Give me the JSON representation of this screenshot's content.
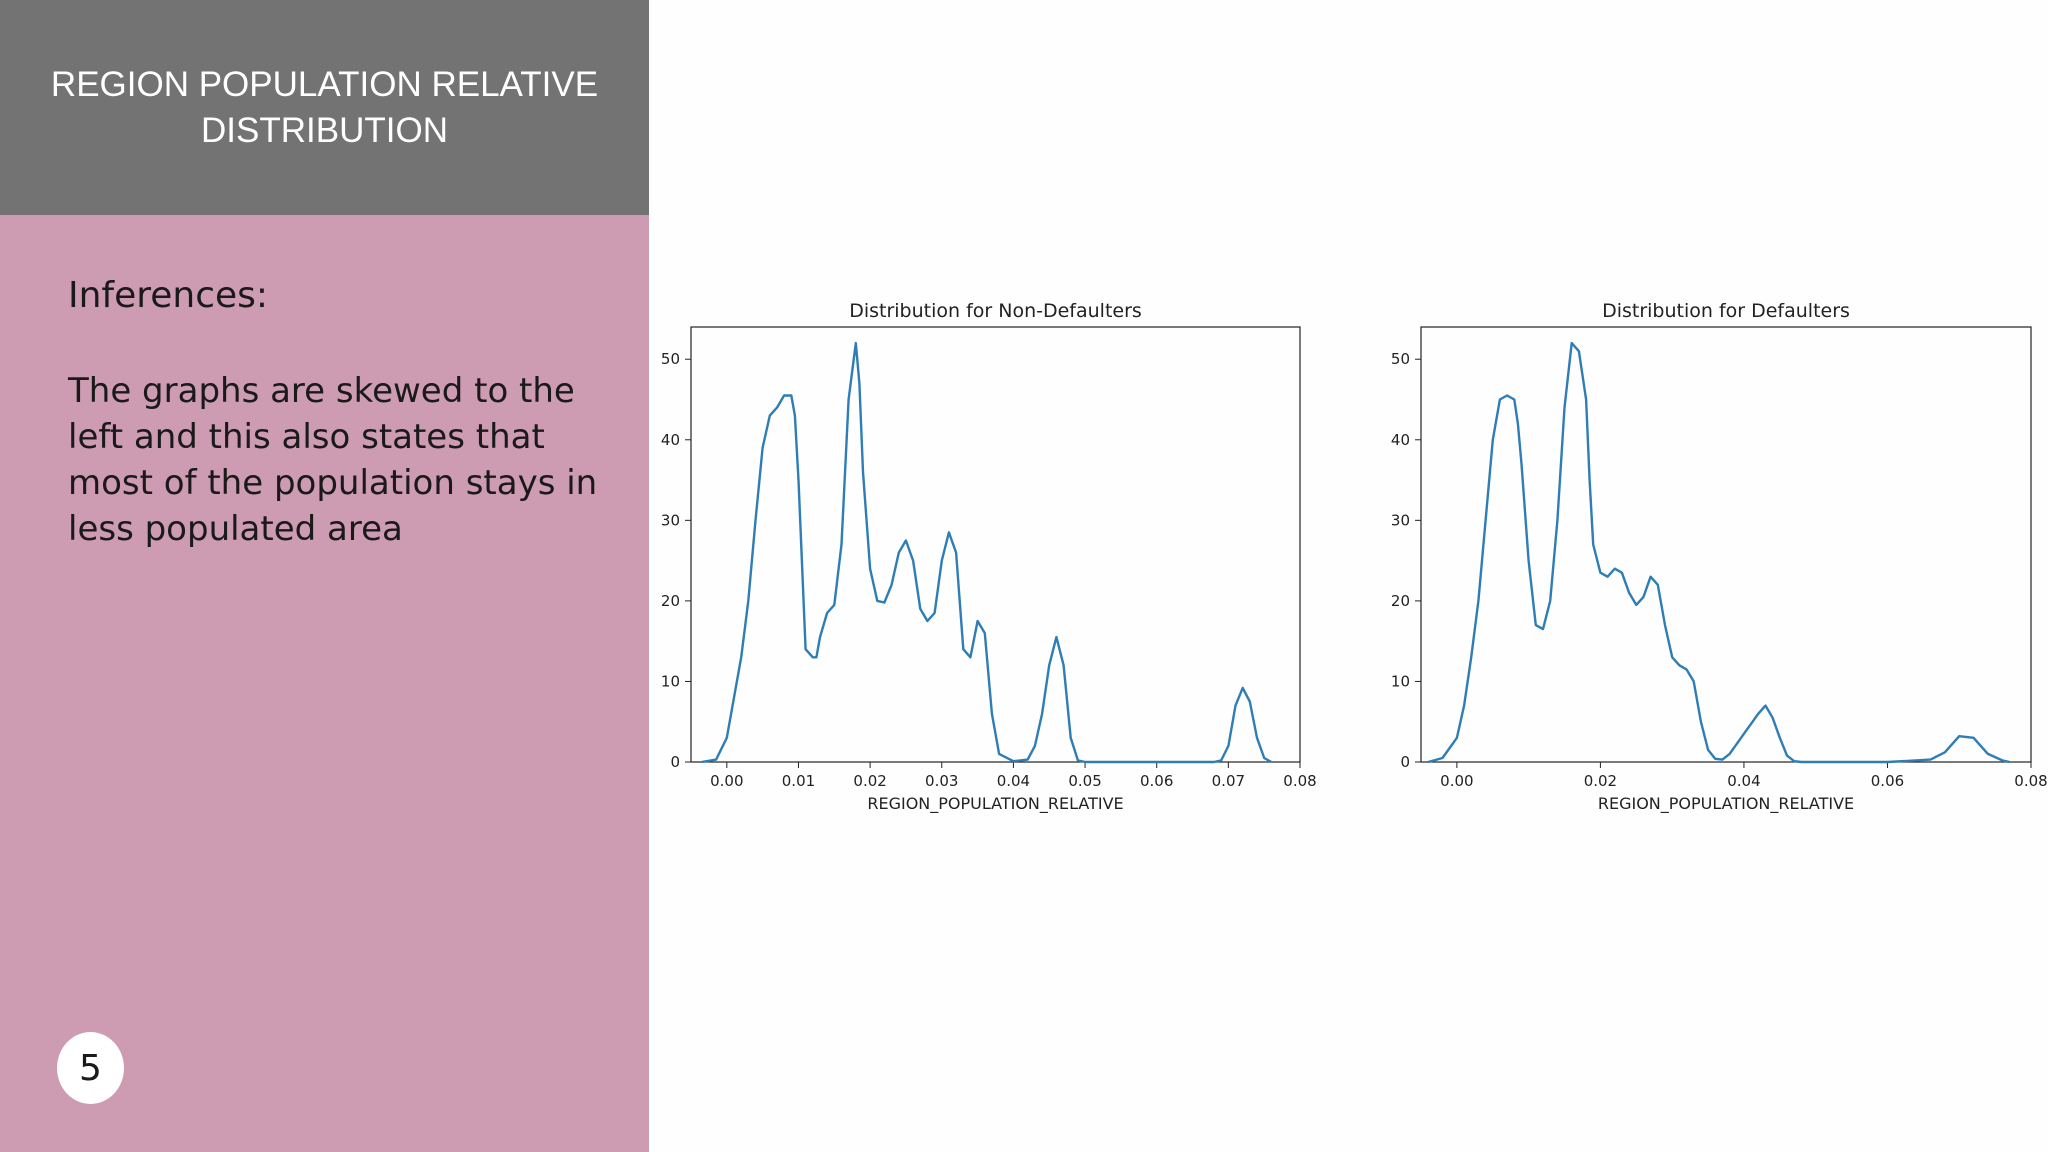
{
  "slide": {
    "title": "REGION POPULATION RELATIVE DISTRIBUTION",
    "inferences_heading": "Inferences:",
    "inferences_text": "The graphs are skewed to the left and this also states that most of the population stays in less populated area",
    "page_number": "5"
  },
  "colors": {
    "header_bg": "#737373",
    "panel_bg": "#cd9bb2",
    "line": "#2e7db5"
  },
  "chart_data": [
    {
      "type": "line",
      "title": "Distribution for Non-Defaulters",
      "xlabel": "REGION_POPULATION_RELATIVE",
      "ylabel": "",
      "xlim": [
        -0.005,
        0.08
      ],
      "ylim": [
        0,
        54
      ],
      "xticks": [
        0.0,
        0.01,
        0.02,
        0.03,
        0.04,
        0.05,
        0.06,
        0.07,
        0.08
      ],
      "xtick_labels": [
        "0.00",
        "0.01",
        "0.02",
        "0.03",
        "0.04",
        "0.05",
        "0.06",
        "0.07",
        "0.08"
      ],
      "yticks": [
        0,
        10,
        20,
        30,
        40,
        50
      ],
      "grid": false,
      "series": [
        {
          "x": [
            -0.0035,
            -0.0015,
            0.0,
            0.001,
            0.002,
            0.003,
            0.004,
            0.005,
            0.006,
            0.0065,
            0.007,
            0.008,
            0.009,
            0.0095,
            0.01,
            0.011,
            0.012,
            0.0125,
            0.013,
            0.014,
            0.015,
            0.016,
            0.017,
            0.018,
            0.0185,
            0.019,
            0.02,
            0.021,
            0.022,
            0.023,
            0.024,
            0.025,
            0.026,
            0.027,
            0.028,
            0.029,
            0.03,
            0.031,
            0.032,
            0.033,
            0.034,
            0.035,
            0.036,
            0.037,
            0.038,
            0.04,
            0.042,
            0.043,
            0.044,
            0.045,
            0.046,
            0.047,
            0.048,
            0.049,
            0.05,
            0.06,
            0.068,
            0.069,
            0.07,
            0.071,
            0.072,
            0.073,
            0.074,
            0.075,
            0.076
          ],
          "y": [
            0,
            0.3,
            3,
            8,
            13,
            20,
            30,
            39,
            43,
            43.5,
            44,
            45.5,
            45.5,
            43,
            35,
            14,
            13,
            13,
            15.5,
            18.5,
            19.5,
            27,
            45,
            52,
            47,
            36,
            24,
            20,
            19.8,
            22,
            26,
            27.5,
            25,
            19,
            17.5,
            18.5,
            25,
            28.5,
            26,
            14,
            13,
            17.5,
            16,
            6,
            1,
            0.1,
            0.3,
            2,
            6,
            12,
            15.5,
            12,
            3,
            0.2,
            0,
            0,
            0,
            0.2,
            2,
            7,
            9.2,
            7.5,
            3,
            0.5,
            0
          ]
        }
      ]
    },
    {
      "type": "line",
      "title": "Distribution for Defaulters",
      "xlabel": "REGION_POPULATION_RELATIVE",
      "ylabel": "",
      "xlim": [
        -0.005,
        0.08
      ],
      "ylim": [
        0,
        54
      ],
      "xticks": [
        0.0,
        0.02,
        0.04,
        0.06,
        0.08
      ],
      "xtick_labels": [
        "0.00",
        "0.02",
        "0.04",
        "0.06",
        "0.08"
      ],
      "yticks": [
        0,
        10,
        20,
        30,
        40,
        50
      ],
      "grid": false,
      "series": [
        {
          "x": [
            -0.004,
            -0.002,
            0.0,
            0.001,
            0.002,
            0.003,
            0.004,
            0.005,
            0.006,
            0.007,
            0.008,
            0.0085,
            0.009,
            0.01,
            0.011,
            0.012,
            0.013,
            0.014,
            0.015,
            0.016,
            0.017,
            0.018,
            0.0185,
            0.019,
            0.02,
            0.021,
            0.022,
            0.023,
            0.024,
            0.025,
            0.026,
            0.027,
            0.028,
            0.029,
            0.03,
            0.031,
            0.032,
            0.033,
            0.034,
            0.035,
            0.036,
            0.037,
            0.038,
            0.04,
            0.042,
            0.043,
            0.044,
            0.045,
            0.046,
            0.047,
            0.048,
            0.05,
            0.052,
            0.06,
            0.066,
            0.068,
            0.07,
            0.072,
            0.0725,
            0.074,
            0.076,
            0.077
          ],
          "y": [
            0,
            0.5,
            3,
            7,
            13,
            20,
            30,
            40,
            45,
            45.5,
            45,
            42,
            37,
            25,
            17,
            16.5,
            20,
            30,
            44,
            52,
            51,
            45,
            35,
            27,
            23.5,
            23,
            24,
            23.5,
            21,
            19.5,
            20.5,
            23,
            22,
            17,
            13,
            12,
            11.5,
            10,
            5,
            1.5,
            0.4,
            0.3,
            1,
            3.5,
            6,
            7,
            5.5,
            3,
            0.8,
            0.1,
            0,
            0,
            0,
            0,
            0.3,
            1.2,
            3.2,
            3,
            2.5,
            1,
            0.2,
            0
          ]
        }
      ]
    }
  ]
}
